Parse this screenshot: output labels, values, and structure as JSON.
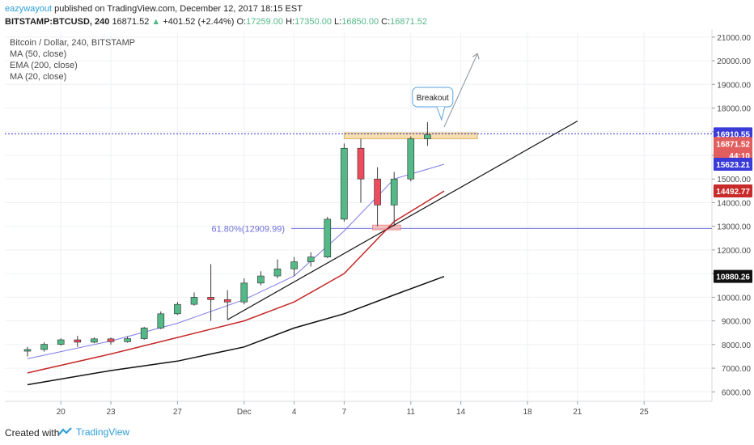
{
  "header": {
    "author": "eazywayout",
    "published_text": "published on TradingView.com, December 12, 2017 18:15 EST",
    "symbol": "BITSTAMP:BTCUSD, 240",
    "last": "16871.52",
    "change": "+401.52 (+2.44%)",
    "o_label": "O:",
    "o_val": "17259.00",
    "h_label": "H:",
    "h_val": "17350.00",
    "l_label": "L:",
    "l_val": "16850.00",
    "c_label": "C:",
    "c_val": "16871.52"
  },
  "footer": {
    "created_with": "Created with",
    "brand": "TradingView"
  },
  "legend": [
    "Bitcoin / Dollar, 240, BITSTAMP",
    "MA (50, close)",
    "EMA (200, close)",
    "MA (20, close)"
  ],
  "annotations": {
    "breakout": "Breakout",
    "fib": "61.80%(12909.99)"
  },
  "chart_data": {
    "type": "candlestick",
    "title": "Bitcoin / Dollar, 240, BITSTAMP",
    "y_ticks": [
      "21000.00",
      "20000.00",
      "19000.00",
      "18000.00",
      "17000.00",
      "16000.00",
      "15000.00",
      "14000.00",
      "13000.00",
      "12000.00",
      "11000.00",
      "10000.00",
      "9000.00",
      "8000.00",
      "7000.00",
      "6000.00"
    ],
    "ylim": [
      5600,
      21200
    ],
    "x_ticks": [
      {
        "label": "20",
        "date": "2017-11-20"
      },
      {
        "label": "23",
        "date": "2017-11-23"
      },
      {
        "label": "27",
        "date": "2017-11-27"
      },
      {
        "label": "Dec",
        "date": "2017-12-01"
      },
      {
        "label": "4",
        "date": "2017-12-04"
      },
      {
        "label": "7",
        "date": "2017-12-07"
      },
      {
        "label": "11",
        "date": "2017-12-11"
      },
      {
        "label": "14",
        "date": "2017-12-14"
      },
      {
        "label": "18",
        "date": "2017-12-18"
      },
      {
        "label": "21",
        "date": "2017-12-21"
      },
      {
        "label": "25",
        "date": "2017-12-25"
      }
    ],
    "price_labels": [
      {
        "value": "16910.55",
        "y": 16910.55,
        "color": "#3a3ad8"
      },
      {
        "value": "16871.52",
        "y": 16500,
        "color": "#e25d5d"
      },
      {
        "value": "44:10",
        "y": 16000,
        "color": "#e25d5d"
      },
      {
        "value": "15623.21",
        "y": 15623.21,
        "color": "#3a3ad8"
      },
      {
        "value": "14492.77",
        "y": 14492.77,
        "color": "#c92a2a"
      },
      {
        "value": "10880.26",
        "y": 10880.26,
        "color": "#111111"
      }
    ],
    "ohlc": [
      [
        "2017-11-18",
        7720,
        7900,
        7500,
        7790
      ],
      [
        "2017-11-19",
        7790,
        8100,
        7700,
        8010
      ],
      [
        "2017-11-20",
        8010,
        8260,
        7950,
        8200
      ],
      [
        "2017-11-21",
        8200,
        8370,
        7900,
        8100
      ],
      [
        "2017-11-22",
        8100,
        8300,
        8050,
        8240
      ],
      [
        "2017-11-23",
        8240,
        8300,
        8000,
        8120
      ],
      [
        "2017-11-24",
        8120,
        8350,
        8080,
        8250
      ],
      [
        "2017-11-25",
        8250,
        8750,
        8200,
        8700
      ],
      [
        "2017-11-26",
        8700,
        9400,
        8650,
        9300
      ],
      [
        "2017-11-27",
        9300,
        9800,
        9250,
        9700
      ],
      [
        "2017-11-28",
        9700,
        10200,
        9650,
        10000
      ],
      [
        "2017-11-29",
        10000,
        11400,
        9000,
        9900
      ],
      [
        "2017-11-30",
        9900,
        10300,
        9050,
        9800
      ],
      [
        "2017-12-01",
        9800,
        10800,
        9700,
        10600
      ],
      [
        "2017-12-02",
        10600,
        11100,
        10500,
        10900
      ],
      [
        "2017-12-03",
        10900,
        11600,
        10800,
        11200
      ],
      [
        "2017-12-04",
        11200,
        11700,
        10900,
        11500
      ],
      [
        "2017-12-05",
        11500,
        11900,
        11300,
        11700
      ],
      [
        "2017-12-06",
        11700,
        13400,
        11650,
        13300
      ],
      [
        "2017-12-07",
        13300,
        16500,
        13200,
        16300
      ],
      [
        "2017-12-08",
        16300,
        16700,
        14000,
        15000
      ],
      [
        "2017-12-09",
        15000,
        15500,
        13000,
        13900
      ],
      [
        "2017-12-10",
        13900,
        15300,
        13000,
        15000
      ],
      [
        "2017-12-11",
        15000,
        16800,
        14900,
        16700
      ],
      [
        "2017-12-12",
        16700,
        17400,
        16400,
        16871.52
      ]
    ],
    "series": [
      {
        "name": "MA (50, close)",
        "color": "#c62828",
        "points": [
          [
            "2017-11-18",
            6800
          ],
          [
            "2017-11-23",
            7600
          ],
          [
            "2017-11-27",
            8300
          ],
          [
            "2017-12-01",
            9000
          ],
          [
            "2017-12-04",
            9800
          ],
          [
            "2017-12-07",
            11000
          ],
          [
            "2017-12-10",
            13200
          ],
          [
            "2017-12-13",
            14492.77
          ]
        ]
      },
      {
        "name": "EMA (200, close)",
        "color": "#111111",
        "points": [
          [
            "2017-11-18",
            6300
          ],
          [
            "2017-11-23",
            6900
          ],
          [
            "2017-11-27",
            7300
          ],
          [
            "2017-12-01",
            7900
          ],
          [
            "2017-12-04",
            8700
          ],
          [
            "2017-12-07",
            9300
          ],
          [
            "2017-12-10",
            10100
          ],
          [
            "2017-12-13",
            10880.26
          ]
        ]
      },
      {
        "name": "MA (20, close)",
        "color": "#7b7be6",
        "points": [
          [
            "2017-11-18",
            7400
          ],
          [
            "2017-11-23",
            8150
          ],
          [
            "2017-11-27",
            8900
          ],
          [
            "2017-12-01",
            9900
          ],
          [
            "2017-12-04",
            10900
          ],
          [
            "2017-12-07",
            12800
          ],
          [
            "2017-12-10",
            15000
          ],
          [
            "2017-12-13",
            15623.21
          ]
        ]
      }
    ],
    "drawings": {
      "current_price_line": 16910.55,
      "fib_line": 12909.99,
      "trendline": [
        [
          "2017-11-30",
          9050
        ],
        [
          "2017-12-21",
          17450
        ]
      ],
      "resistance_zone": {
        "from": "2017-12-07",
        "to": "2017-12-15",
        "top": 16950,
        "bottom": 16700
      },
      "support_zone": {
        "from": "2017-12-09",
        "to": "2017-12-10",
        "top": 13050,
        "bottom": 12850
      },
      "arrow": [
        [
          "2017-12-13",
          17200
        ],
        [
          "2017-12-15",
          20300
        ]
      ]
    }
  }
}
